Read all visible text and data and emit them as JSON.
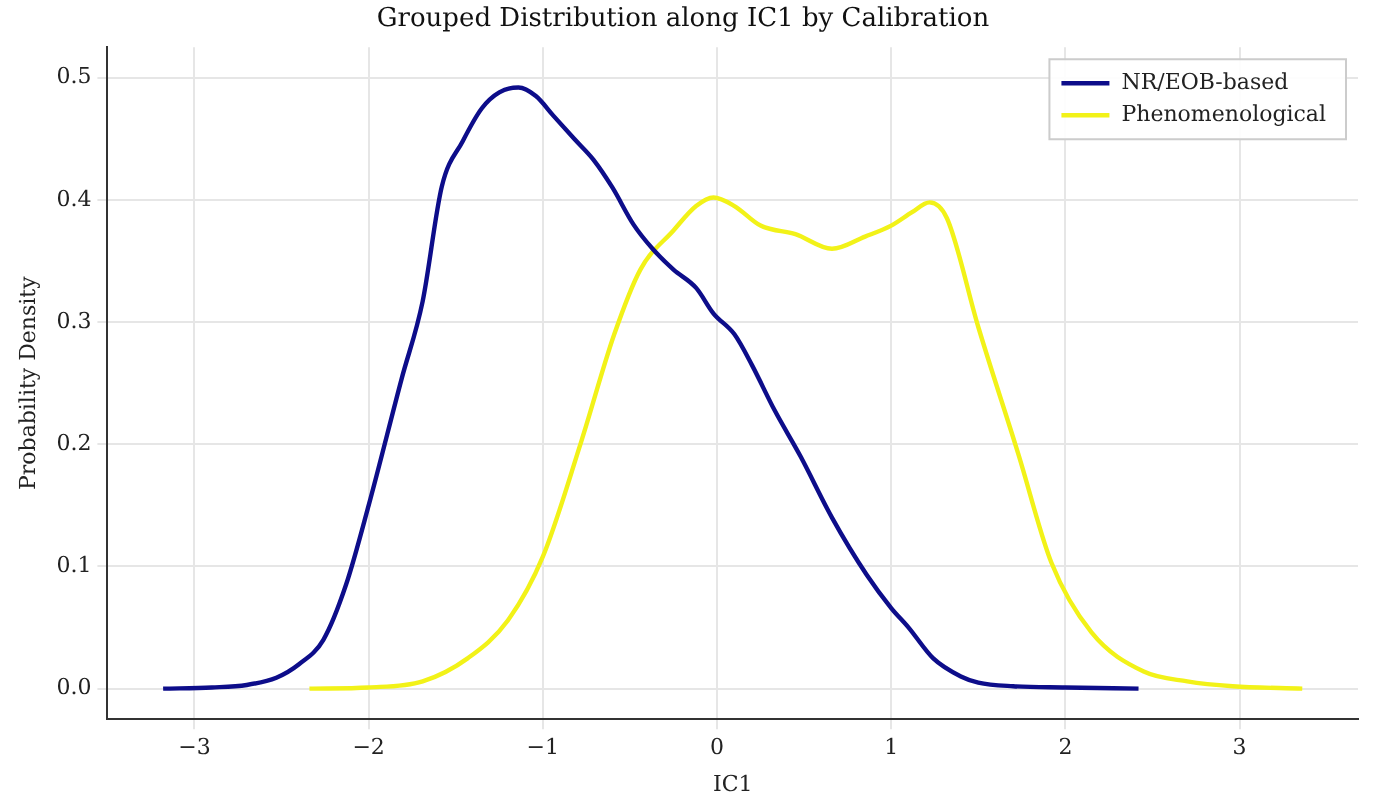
{
  "chart_data": {
    "type": "line",
    "title": "Grouped Distribution along IC1 by Calibration",
    "xlabel": "IC1",
    "ylabel": "Probability Density",
    "xlim": [
      -3.5,
      3.68
    ],
    "ylim": [
      -0.025,
      0.525
    ],
    "xticks": [
      {
        "value": -3,
        "label": "−3"
      },
      {
        "value": -2,
        "label": "−2"
      },
      {
        "value": -1,
        "label": "−1"
      },
      {
        "value": 0,
        "label": "0"
      },
      {
        "value": 1,
        "label": "1"
      },
      {
        "value": 2,
        "label": "2"
      },
      {
        "value": 3,
        "label": "3"
      }
    ],
    "yticks": [
      {
        "value": 0,
        "label": "0.0"
      },
      {
        "value": 0.1,
        "label": "0.1"
      },
      {
        "value": 0.2,
        "label": "0.2"
      },
      {
        "value": 0.3,
        "label": "0.3"
      },
      {
        "value": 0.4,
        "label": "0.4"
      },
      {
        "value": 0.5,
        "label": "0.5"
      }
    ],
    "grid": true,
    "legend": "top right",
    "marker": "none",
    "line_style": "solid",
    "series": [
      {
        "name": "NR/EOB-based",
        "color": "#0d0d8a",
        "x": [
          -3.18,
          -2.9,
          -2.7,
          -2.53,
          -2.4,
          -2.26,
          -2.13,
          -2.0,
          -1.81,
          -1.69,
          -1.58,
          -1.46,
          -1.35,
          -1.25,
          -1.14,
          -1.04,
          -0.94,
          -0.82,
          -0.71,
          -0.6,
          -0.48,
          -0.37,
          -0.25,
          -0.12,
          -0.02,
          0.1,
          0.2,
          0.33,
          0.48,
          0.66,
          0.86,
          1.0,
          1.1,
          1.24,
          1.4,
          1.5,
          1.7,
          2.0,
          2.42
        ],
        "values": [
          0,
          0.001,
          0.003,
          0.009,
          0.02,
          0.04,
          0.085,
          0.15,
          0.254,
          0.317,
          0.411,
          0.448,
          0.475,
          0.488,
          0.492,
          0.485,
          0.469,
          0.45,
          0.433,
          0.41,
          0.38,
          0.36,
          0.343,
          0.328,
          0.307,
          0.29,
          0.265,
          0.228,
          0.19,
          0.14,
          0.093,
          0.066,
          0.05,
          0.025,
          0.01,
          0.005,
          0.002,
          0.001,
          0
        ]
      },
      {
        "name": "Phenomenological",
        "color": "#f2f218",
        "x": [
          -2.34,
          -2.0,
          -1.69,
          -1.43,
          -1.2,
          -1.0,
          -0.78,
          -0.59,
          -0.44,
          -0.25,
          -0.12,
          -0.02,
          0.1,
          0.25,
          0.45,
          0.66,
          0.85,
          1.0,
          1.12,
          1.22,
          1.32,
          1.5,
          1.73,
          1.92,
          2.15,
          2.45,
          2.7,
          2.96,
          3.36
        ],
        "values": [
          0,
          0.001,
          0.006,
          0.025,
          0.056,
          0.108,
          0.202,
          0.29,
          0.343,
          0.375,
          0.395,
          0.402,
          0.395,
          0.379,
          0.372,
          0.36,
          0.37,
          0.379,
          0.39,
          0.398,
          0.385,
          0.296,
          0.192,
          0.103,
          0.046,
          0.014,
          0.006,
          0.002,
          0
        ]
      }
    ]
  }
}
